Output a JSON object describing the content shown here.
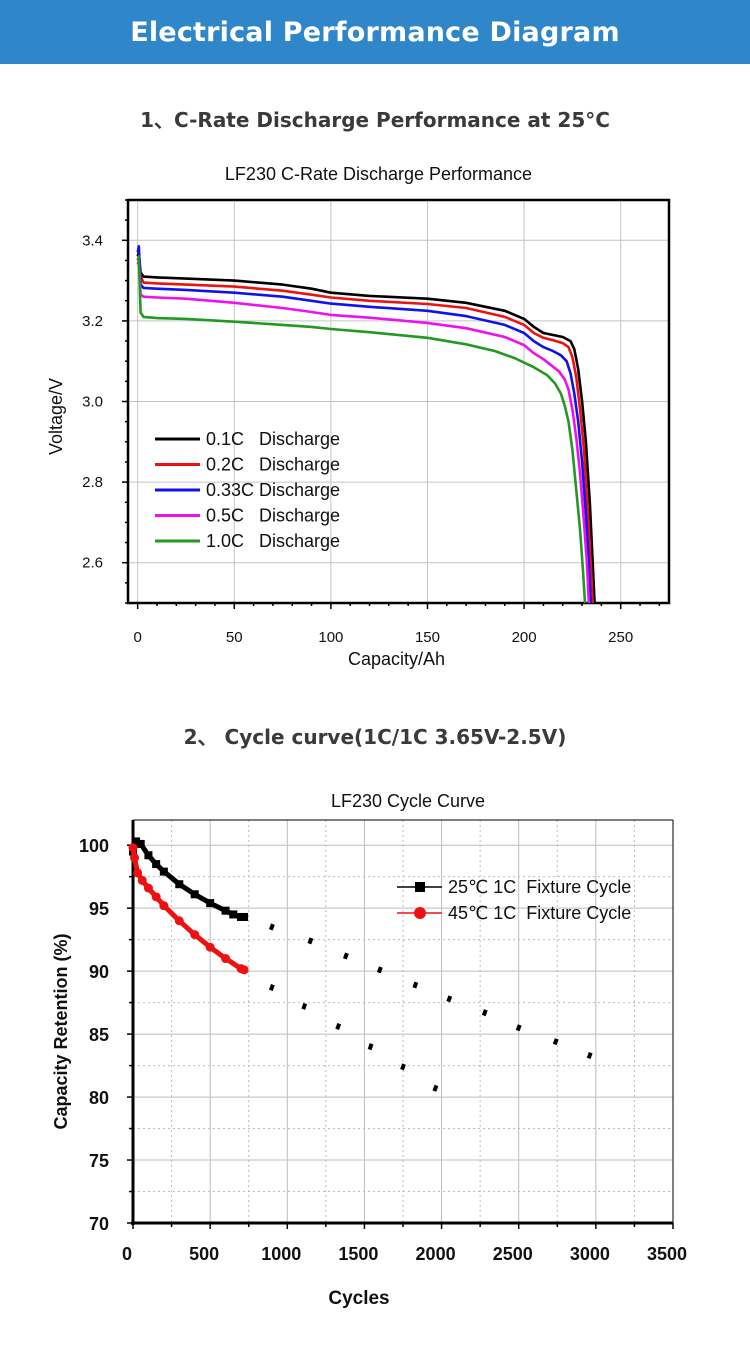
{
  "banner": {
    "title": "Electrical Performance Diagram"
  },
  "section1": {
    "heading": "1、C-Rate Discharge Performance at 25°C"
  },
  "section2": {
    "heading": "2、 Cycle curve(1C/1C 3.65V-2.5V)"
  },
  "chart_data": [
    {
      "type": "line",
      "title": "LF230 C-Rate Discharge Performance",
      "xlabel": "Capacity/Ah",
      "ylabel": "Voltage/V",
      "xlim": [
        -5,
        275
      ],
      "ylim": [
        2.5,
        3.5
      ],
      "xticks": [
        "0",
        "50",
        "100",
        "150",
        "200",
        "250"
      ],
      "yticks": [
        "2.6",
        "2.8",
        "3.0",
        "3.2",
        "3.4"
      ],
      "grid": true,
      "legend_position": "lower-left",
      "series": [
        {
          "name": "0.1C   Discharge",
          "color": "#000000",
          "x": [
            0,
            0.6,
            1.5,
            3,
            10,
            25,
            50,
            75,
            90,
            100,
            120,
            150,
            170,
            190,
            200,
            205,
            210,
            215,
            220,
            224,
            226,
            228,
            230,
            232,
            234,
            235.5,
            236.5
          ],
          "y": [
            3.36,
            3.37,
            3.32,
            3.31,
            3.308,
            3.305,
            3.3,
            3.29,
            3.28,
            3.27,
            3.262,
            3.255,
            3.245,
            3.225,
            3.205,
            3.185,
            3.17,
            3.165,
            3.16,
            3.15,
            3.13,
            3.08,
            3.0,
            2.9,
            2.75,
            2.6,
            2.5
          ]
        },
        {
          "name": "0.2C   Discharge",
          "color": "#ee1111",
          "x": [
            0,
            0.6,
            1.5,
            3,
            10,
            25,
            50,
            75,
            90,
            100,
            120,
            150,
            170,
            190,
            200,
            205,
            210,
            215,
            220,
            223,
            225,
            227,
            229,
            231,
            233,
            234.5,
            235.5
          ],
          "y": [
            3.35,
            3.36,
            3.31,
            3.295,
            3.293,
            3.29,
            3.285,
            3.275,
            3.265,
            3.258,
            3.25,
            3.242,
            3.232,
            3.21,
            3.19,
            3.17,
            3.158,
            3.152,
            3.145,
            3.135,
            3.11,
            3.06,
            2.98,
            2.88,
            2.73,
            2.6,
            2.5
          ]
        },
        {
          "name": "0.33C Discharge",
          "color": "#1111ee",
          "x": [
            0,
            0.6,
            1.5,
            3,
            10,
            25,
            50,
            75,
            90,
            100,
            120,
            150,
            170,
            190,
            200,
            205,
            210,
            215,
            219,
            222,
            224,
            226,
            228,
            230,
            232,
            233.5,
            234.5
          ],
          "y": [
            3.37,
            3.385,
            3.29,
            3.282,
            3.28,
            3.277,
            3.27,
            3.26,
            3.25,
            3.243,
            3.235,
            3.225,
            3.212,
            3.19,
            3.17,
            3.15,
            3.135,
            3.125,
            3.115,
            3.1,
            3.07,
            3.02,
            2.95,
            2.85,
            2.72,
            2.6,
            2.5
          ]
        },
        {
          "name": "0.5C   Discharge",
          "color": "#ee11ee",
          "x": [
            0,
            0.6,
            1.5,
            3,
            10,
            25,
            50,
            75,
            90,
            100,
            120,
            150,
            170,
            190,
            200,
            205,
            210,
            214,
            218,
            221,
            223,
            225,
            227,
            229,
            231,
            232.5,
            233.5
          ],
          "y": [
            3.34,
            3.35,
            3.265,
            3.26,
            3.258,
            3.255,
            3.245,
            3.232,
            3.222,
            3.215,
            3.208,
            3.195,
            3.182,
            3.16,
            3.14,
            3.12,
            3.105,
            3.09,
            3.075,
            3.055,
            3.03,
            2.98,
            2.91,
            2.82,
            2.7,
            2.6,
            2.5
          ]
        },
        {
          "name": "1.0C   Discharge",
          "color": "#229922",
          "x": [
            0,
            0.6,
            1.5,
            3,
            10,
            25,
            50,
            75,
            90,
            100,
            120,
            150,
            170,
            185,
            195,
            205,
            212,
            216,
            219,
            221,
            223,
            225,
            227,
            229,
            230.5,
            231.5
          ],
          "y": [
            3.35,
            3.36,
            3.22,
            3.21,
            3.207,
            3.205,
            3.198,
            3.19,
            3.185,
            3.18,
            3.172,
            3.158,
            3.142,
            3.125,
            3.108,
            3.085,
            3.065,
            3.045,
            3.02,
            2.99,
            2.95,
            2.88,
            2.78,
            2.68,
            2.58,
            2.5
          ]
        }
      ]
    },
    {
      "type": "line",
      "title": "LF230 Cycle Curve",
      "xlabel": "Cycles",
      "ylabel": "Capacity Retention (%)",
      "xlim": [
        0,
        3500
      ],
      "ylim": [
        70,
        102
      ],
      "xticks": [
        "0",
        "500",
        "1000",
        "1500",
        "2000",
        "2500",
        "3000",
        "3500"
      ],
      "yticks": [
        "70",
        "75",
        "80",
        "85",
        "90",
        "95",
        "100"
      ],
      "grid": true,
      "legend_position": "upper-right",
      "series": [
        {
          "name": "25℃ 1C  Fixture Cycle",
          "color": "#000000",
          "x": [
            0,
            20,
            50,
            100,
            150,
            200,
            300,
            400,
            500,
            600,
            650,
            700,
            720
          ],
          "y": [
            99.5,
            100.3,
            100.1,
            99.2,
            98.5,
            97.9,
            96.9,
            96.1,
            95.4,
            94.8,
            94.5,
            94.3,
            94.3
          ],
          "projection": {
            "x": [
              900,
              1150,
              1380,
              1600,
              1830,
              2050,
              2280,
              2500,
              2740,
              2960
            ],
            "y": [
              93.5,
              92.4,
              91.2,
              90.1,
              88.9,
              87.8,
              86.7,
              85.5,
              84.4,
              83.3
            ]
          }
        },
        {
          "name": "45℃ 1C  Fixture Cycle",
          "color": "#ee1111",
          "x": [
            0,
            10,
            30,
            60,
            100,
            150,
            200,
            300,
            400,
            500,
            600,
            700,
            720
          ],
          "y": [
            99.8,
            99.0,
            97.8,
            97.2,
            96.6,
            95.9,
            95.2,
            94.0,
            92.9,
            91.9,
            91.0,
            90.2,
            90.1
          ],
          "projection": {
            "x": [
              900,
              1110,
              1330,
              1540,
              1750,
              1960
            ],
            "y": [
              88.7,
              87.2,
              85.6,
              84.0,
              82.4,
              80.7
            ]
          }
        }
      ]
    }
  ]
}
